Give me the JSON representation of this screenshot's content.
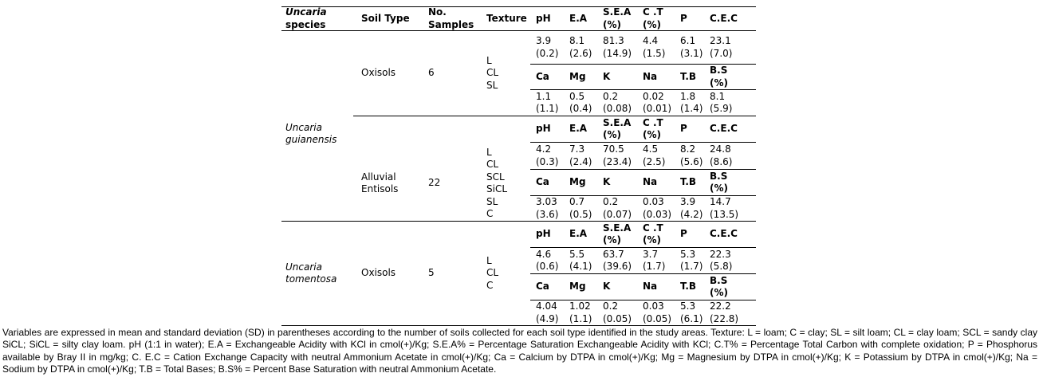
{
  "table": {
    "header": {
      "species_line1": "Uncaria",
      "species_line2": "species",
      "soil_type": "Soil Type",
      "no_samples": "No.\nSamples",
      "texture": "Texture"
    },
    "chem_header": [
      "pH",
      "E.A",
      "S.E.A\n(%)",
      "C .T\n(%)",
      "P",
      "C.E.C"
    ],
    "base_header": [
      "Ca",
      "Mg",
      "K",
      "Na",
      "T.B",
      "B.S\n(%)"
    ],
    "species_groups": [
      {
        "name": "Uncaria\nguianensis"
      },
      {
        "name": "Uncaria\ntomentosa"
      }
    ],
    "sections": [
      {
        "soil_type": "Oxisols",
        "no_samples": "6",
        "texture": "L\nCL\nSL",
        "chem": [
          "3.9\n(0.2)",
          "8.1\n(2.6)",
          "81.3\n(14.9)",
          "4.4\n(1.5)",
          "6.1\n(3.1)",
          "23.1\n(7.0)"
        ],
        "bases": [
          "1.1\n(1.1)",
          "0.5\n(0.4)",
          "0.2\n(0.08)",
          "0.02\n(0.01)",
          "1.8\n(1.4)",
          "8.1\n(5.9)"
        ]
      },
      {
        "soil_type": "Alluvial\nEntisols",
        "no_samples": "22",
        "texture": "L\nCL\nSCL\nSiCL\nSL\nC",
        "chem": [
          "4.2\n(0.3)",
          "7.3\n(2.4)",
          "70.5\n(23.4)",
          "4.5\n(2.5)",
          "8.2\n(5.6)",
          "24.8\n(8.6)"
        ],
        "bases": [
          "3.03\n(3.6)",
          "0.7\n(0.5)",
          "0.2\n(0.07)",
          "0.03\n(0.03)",
          "3.9\n(4.2)",
          "14.7\n(13.5)"
        ]
      },
      {
        "soil_type": "Oxisols",
        "no_samples": "5",
        "texture": "L\nCL\nC",
        "chem": [
          "4.6\n(0.6)",
          "5.5\n(4.1)",
          "63.7\n(39.6)",
          "3.7\n(1.7)",
          "5.3\n(1.7)",
          "22.3\n(5.8)"
        ],
        "bases": [
          "4.04\n(4.9)",
          "1.02\n(1.1)",
          "0.2\n(0.05)",
          "0.03\n(0.05)",
          "5.3\n(6.1)",
          "22.2\n(22.8)"
        ]
      }
    ]
  },
  "footnote": "Variables are expressed in mean and standard deviation (SD) in parentheses according to the number of soils collected for each soil type identified in the study areas. Texture: L = loam; C = clay; SL = silt loam; CL = clay loam; SCL = sandy clay SiCL; SiCL = silty clay loam. pH (1:1 in water); E.A = Exchangeable Acidity with KCl in cmol(+)/Kg; S.E.A% = Percentage Saturation Exchangeable Acidity with KCl; C.T% = Percentage Total Carbon with complete oxidation; P = Phosphorus available by Bray II in mg/kg; C. E.C = Cation Exchange Capacity with neutral Ammonium Acetate in cmol(+)/Kg; Ca = Calcium by DTPA in cmol(+)/Kg; Mg = Magnesium by DTPA in cmol(+)/Kg; K = Potassium by DTPA in cmol(+)/Kg; Na = Sodium by DTPA in cmol(+)/Kg; T.B = Total Bases; B.S% = Percent Base Saturation with neutral Ammonium Acetate."
}
